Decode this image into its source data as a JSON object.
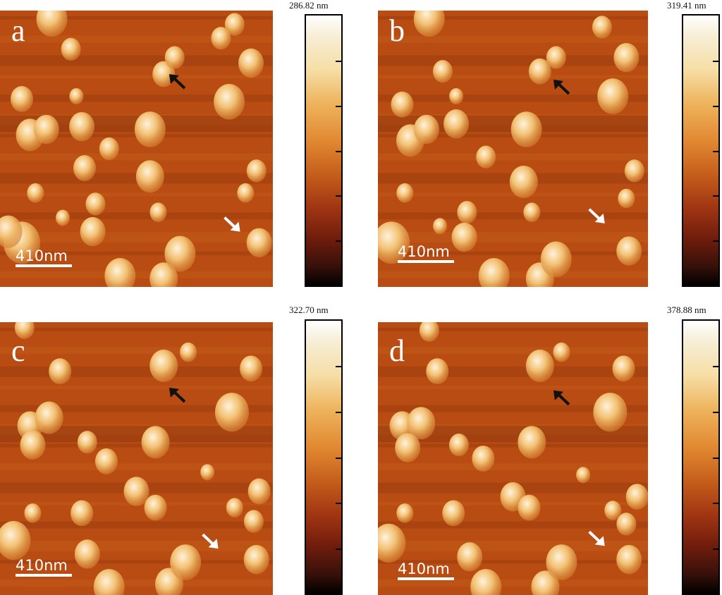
{
  "panels": [
    {
      "letter": "a",
      "max_height": "286.82 nm",
      "scale_bar": "410nm"
    },
    {
      "letter": "b",
      "max_height": "319.41 nm",
      "scale_bar": "410nm"
    },
    {
      "letter": "c",
      "max_height": "322.70 nm",
      "scale_bar": "410nm"
    },
    {
      "letter": "d",
      "max_height": "378.88 nm",
      "scale_bar": "410nm"
    }
  ],
  "colormap": "afmhot",
  "colors": {
    "substrate": "#b94c12",
    "substrate_dark_band": "#7a2a0c",
    "particle": "#f2c072",
    "particle_highlight": "#fff3dc",
    "arrow_black": "#111111",
    "arrow_white": "#ffffff"
  }
}
